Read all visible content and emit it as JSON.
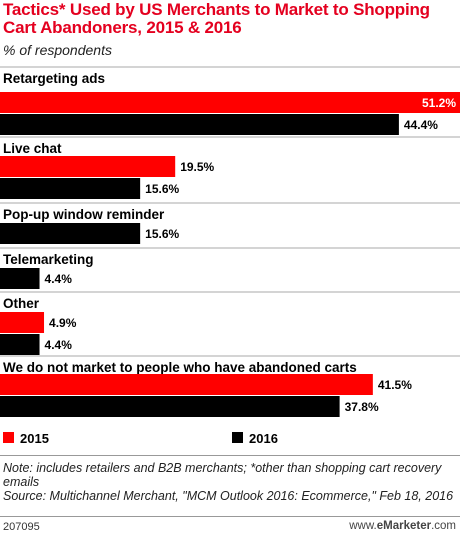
{
  "chart_data": {
    "type": "bar",
    "orientation": "horizontal",
    "title": "Tactics* Used by US Merchants to Market to Shopping Cart Abandoners, 2015 & 2016",
    "subtitle": "% of respondents",
    "value_suffix": "%",
    "xlim": [
      0,
      51.2
    ],
    "categories": [
      "Retargeting ads",
      "Live chat",
      "Pop-up window reminder",
      "Telemarketing",
      "Other",
      "We do not market to people who have abandoned carts"
    ],
    "series": [
      {
        "name": "2015",
        "color": "#ff0000",
        "values": [
          51.2,
          19.5,
          null,
          null,
          4.9,
          41.5
        ]
      },
      {
        "name": "2016",
        "color": "#000000",
        "values": [
          44.4,
          15.6,
          15.6,
          4.4,
          4.4,
          37.8
        ]
      }
    ],
    "legend": "bottom"
  },
  "footer": {
    "note": "Note: includes retailers and B2B merchants; *other than shopping cart recovery emails",
    "source": "Source: Multichannel Merchant, \"MCM Outlook 2016: Ecommerce,\" Feb 18, 2016",
    "chart_id": "207095",
    "brand_prefix": "www.",
    "brand_name": "eMarketer",
    "brand_suffix": ".com"
  }
}
